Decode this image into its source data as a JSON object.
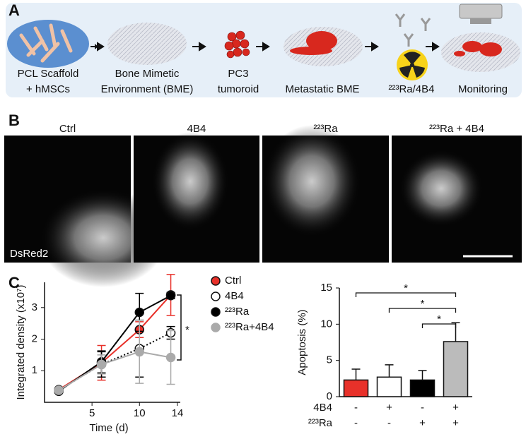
{
  "panel_a": {
    "label": "A",
    "steps": [
      [
        "PCL Scaffold",
        "+ hMSCs"
      ],
      [
        "Bone Mimetic",
        "Environment (BME)"
      ],
      [
        "PC3",
        "tumoroid"
      ],
      [
        "Metastatic BME"
      ],
      [
        "²²³Ra/4B4"
      ],
      [
        "Monitoring"
      ]
    ]
  },
  "panel_b": {
    "label": "B",
    "images": [
      "Ctrl",
      "4B4",
      "²²³Ra",
      "²²³Ra + 4B4"
    ],
    "marker": "DsRed2"
  },
  "panel_c": {
    "label": "C",
    "charts": [
      {
        "type": "line",
        "x": [
          1.5,
          6,
          10,
          13.3
        ],
        "xlabel": "Time (d)",
        "ylabel": "Integrated density (x10⁷)",
        "xlim": [
          0,
          14.3
        ],
        "xticks": [
          5,
          10,
          14
        ],
        "ylim": [
          0,
          3.8
        ],
        "yticks": [
          1,
          2,
          3
        ],
        "series": [
          {
            "name": "Ctrl",
            "color": "#e8312a",
            "marker_fill": "#e8312a",
            "line": "solid",
            "values": [
              0.4,
              1.25,
              2.3,
              3.4
            ],
            "errors": [
              0.05,
              0.55,
              0.25,
              0.65
            ]
          },
          {
            "name": "4B4",
            "color": "#000000",
            "marker_fill": "#ffffff",
            "line": "dotted",
            "values": [
              0.38,
              1.2,
              1.7,
              2.2
            ],
            "errors": [
              0.05,
              0.4,
              0.9,
              0.2
            ]
          },
          {
            "name": "²²³Ra",
            "color": "#000000",
            "marker_fill": "#000000",
            "line": "solid",
            "values": [
              0.35,
              1.28,
              2.85,
              3.38
            ],
            "errors": [
              0.05,
              0.35,
              0.6,
              0.1
            ]
          },
          {
            "name": "²²³Ra+4B4",
            "color": "#aaaaaa",
            "marker_fill": "#aaaaaa",
            "line": "solid",
            "values": [
              0.38,
              1.2,
              1.6,
              1.42
            ],
            "errors": [
              0.05,
              0.3,
              1.0,
              0.85
            ]
          }
        ],
        "annotation": "*"
      },
      {
        "type": "bar",
        "values": [
          2.3,
          2.7,
          2.3,
          7.6
        ],
        "errors": [
          1.5,
          1.7,
          1.3,
          2.6
        ],
        "colors": [
          "#e8312a",
          "#ffffff",
          "#000000",
          "#bbbbbb"
        ],
        "ylabel": "Apoptosis (%)",
        "ylim": [
          0,
          15
        ],
        "yticks": [
          0,
          5,
          10,
          15
        ],
        "rows": [
          {
            "label": "4B4",
            "values": [
              "-",
              "+",
              "-",
              "+"
            ]
          },
          {
            "label": "²²³Ra",
            "values": [
              "-",
              "-",
              "+",
              "+"
            ]
          }
        ],
        "annotations": [
          "*",
          "*",
          "*"
        ]
      }
    ]
  }
}
